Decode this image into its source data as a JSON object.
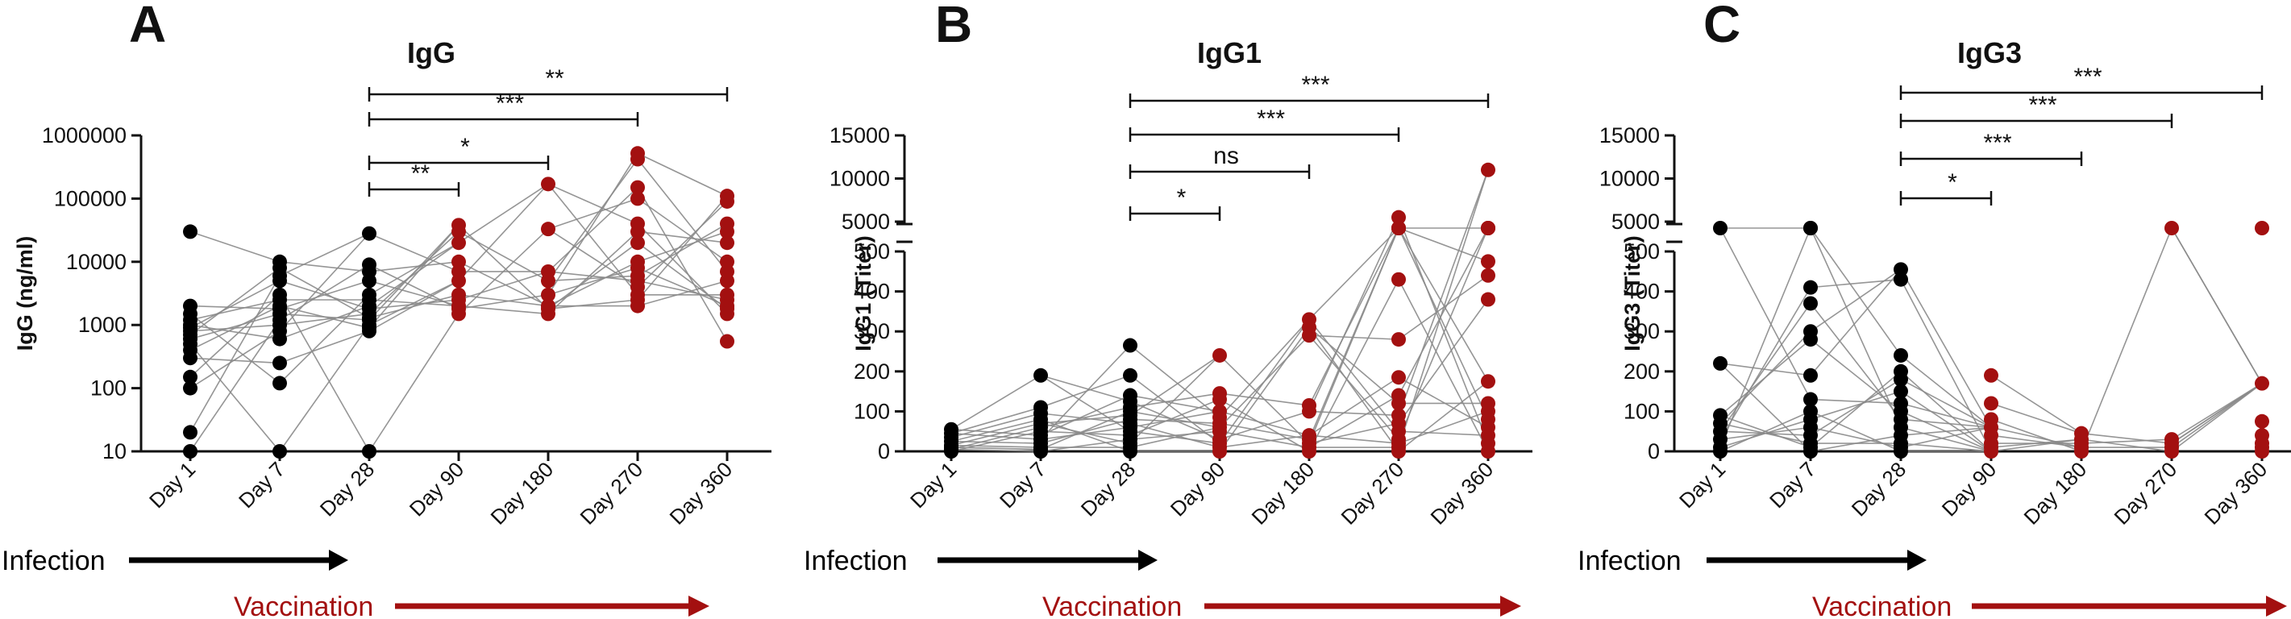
{
  "colors": {
    "infection": "#000000",
    "vaccination": "#a31010",
    "line": "#8a8a8a",
    "axis": "#111111"
  },
  "timeline": {
    "infection_label": "Infection",
    "vaccination_label": "Vaccination"
  },
  "chart_data": [
    {
      "panel": "A",
      "title": "IgG",
      "type": "scatter",
      "ylabel": "IgG (ng/ml)",
      "yscale": "log",
      "ylim": [
        10,
        1000000
      ],
      "yticks": [
        "10",
        "100",
        "1000",
        "10000",
        "100000",
        "1000000"
      ],
      "categories": [
        "Day 1",
        "Day 7",
        "Day 28",
        "Day 90",
        "Day 180",
        "Day 270",
        "Day 360"
      ],
      "infection_categories": [
        "Day 1",
        "Day 7",
        "Day 28"
      ],
      "vaccination_categories": [
        "Day 90",
        "Day 180",
        "Day 270",
        "Day 360"
      ],
      "points": [
        [
          30000,
          2000,
          1500,
          1200,
          1000,
          900,
          800,
          700,
          600,
          500,
          400,
          300,
          150,
          100,
          20,
          10
        ],
        [
          10000,
          8000,
          6000,
          5000,
          3000,
          2500,
          2000,
          1800,
          1500,
          1200,
          1000,
          800,
          600,
          250,
          120,
          10
        ],
        [
          28000,
          9000,
          7000,
          5000,
          3000,
          2500,
          2000,
          1800,
          1500,
          1300,
          1200,
          1000,
          900,
          800,
          10
        ],
        [
          38000,
          30000,
          20000,
          10000,
          7000,
          5000,
          3000,
          2500,
          2000,
          1800,
          1500
        ],
        [
          170000,
          33000,
          7000,
          5000,
          3000,
          2000,
          1800,
          1500
        ],
        [
          520000,
          420000,
          150000,
          100000,
          40000,
          30000,
          20000,
          10000,
          8000,
          6000,
          5000,
          4000,
          3000,
          2500,
          2000
        ],
        [
          110000,
          90000,
          40000,
          30000,
          20000,
          10000,
          7000,
          5000,
          3000,
          2500,
          2000,
          1800,
          1500,
          550
        ]
      ],
      "significance": [
        {
          "from": "Day 28",
          "to": "Day 90",
          "label": "**"
        },
        {
          "from": "Day 28",
          "to": "Day 180",
          "label": "*"
        },
        {
          "from": "Day 28",
          "to": "Day 270",
          "label": "***"
        },
        {
          "from": "Day 28",
          "to": "Day 360",
          "label": "**"
        }
      ]
    },
    {
      "panel": "B",
      "title": "IgG1",
      "type": "scatter",
      "ylabel": "IgG1 (Titer)",
      "yscale": "broken",
      "ylim": [
        0,
        15000
      ],
      "break": [
        500,
        5000
      ],
      "yticks": [
        "0",
        "100",
        "200",
        "300",
        "400",
        "500",
        "5000",
        "10000",
        "15000"
      ],
      "categories": [
        "Day 1",
        "Day 7",
        "Day 28",
        "Day 90",
        "Day 180",
        "Day 270",
        "Day 360"
      ],
      "infection_categories": [
        "Day 1",
        "Day 7",
        "Day 28"
      ],
      "vaccination_categories": [
        "Day 90",
        "Day 180",
        "Day 270",
        "Day 360"
      ],
      "points": [
        [
          55,
          45,
          35,
          25,
          15,
          10,
          5,
          0
        ],
        [
          190,
          110,
          95,
          80,
          70,
          60,
          50,
          40,
          30,
          20,
          10,
          5,
          0
        ],
        [
          265,
          190,
          140,
          125,
          110,
          100,
          90,
          80,
          70,
          60,
          50,
          40,
          30,
          20,
          10,
          0
        ],
        [
          240,
          145,
          130,
          100,
          85,
          70,
          60,
          50,
          30,
          20,
          10,
          0
        ],
        [
          330,
          310,
          290,
          115,
          100,
          40,
          30,
          20,
          10,
          0
        ],
        [
          5500,
          4000,
          3000,
          2000,
          1000,
          430,
          280,
          185,
          140,
          120,
          90,
          70,
          50,
          30,
          20,
          10,
          0
        ],
        [
          11000,
          3000,
          2000,
          1000,
          475,
          440,
          380,
          175,
          120,
          100,
          80,
          60,
          40,
          20,
          0
        ]
      ],
      "significance": [
        {
          "from": "Day 28",
          "to": "Day 90",
          "label": "*"
        },
        {
          "from": "Day 28",
          "to": "Day 180",
          "label": "ns"
        },
        {
          "from": "Day 28",
          "to": "Day 270",
          "label": "***"
        },
        {
          "from": "Day 28",
          "to": "Day 360",
          "label": "***"
        }
      ]
    },
    {
      "panel": "C",
      "title": "IgG3",
      "type": "scatter",
      "ylabel": "IgG3 (Titer)",
      "yscale": "broken",
      "ylim": [
        0,
        15000
      ],
      "break": [
        500,
        5000
      ],
      "yticks": [
        "0",
        "100",
        "200",
        "300",
        "400",
        "500",
        "5000",
        "10000",
        "15000"
      ],
      "categories": [
        "Day 1",
        "Day 7",
        "Day 28",
        "Day 90",
        "Day 180",
        "Day 270",
        "Day 360"
      ],
      "infection_categories": [
        "Day 1",
        "Day 7",
        "Day 28"
      ],
      "vaccination_categories": [
        "Day 90",
        "Day 180",
        "Day 270",
        "Day 360"
      ],
      "points": [
        [
          1000,
          220,
          90,
          70,
          50,
          30,
          10,
          0
        ],
        [
          1500,
          1000,
          410,
          370,
          300,
          280,
          190,
          130,
          100,
          80,
          60,
          40,
          20,
          10,
          0
        ],
        [
          455,
          430,
          240,
          200,
          180,
          150,
          120,
          100,
          80,
          60,
          40,
          20,
          10,
          0
        ],
        [
          190,
          120,
          80,
          60,
          40,
          20,
          10,
          0
        ],
        [
          45,
          30,
          20,
          10,
          0
        ],
        [
          1000,
          30,
          20,
          10,
          0
        ],
        [
          1500,
          170,
          75,
          40,
          20,
          10,
          0
        ]
      ],
      "significance": [
        {
          "from": "Day 28",
          "to": "Day 90",
          "label": "*"
        },
        {
          "from": "Day 28",
          "to": "Day 180",
          "label": "***"
        },
        {
          "from": "Day 28",
          "to": "Day 270",
          "label": "***"
        },
        {
          "from": "Day 28",
          "to": "Day 360",
          "label": "***"
        }
      ]
    }
  ]
}
